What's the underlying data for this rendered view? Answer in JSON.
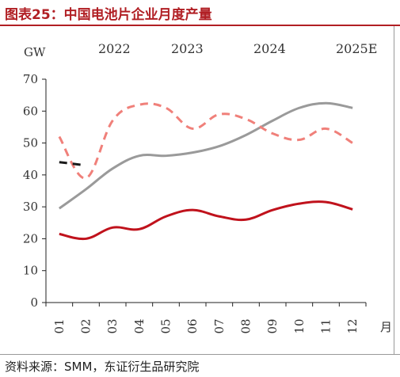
{
  "figure": {
    "title": "图表25：中国电池片企业月度产量",
    "source": "资料来源：SMM，东证衍生品研究院"
  },
  "chart_data": {
    "type": "line",
    "title": "",
    "ylabel": "GW",
    "xlabel": "月",
    "ylim": [
      0,
      70
    ],
    "yticks": [
      0,
      10,
      20,
      30,
      40,
      50,
      60,
      70
    ],
    "categories": [
      "01",
      "02",
      "03",
      "04",
      "05",
      "06",
      "07",
      "08",
      "09",
      "10",
      "11",
      "12"
    ],
    "grid": false,
    "legend_position": "top",
    "series": [
      {
        "name": "2022",
        "color": "#c0121c",
        "dash": "solid",
        "values": [
          21.5,
          20,
          23.5,
          23,
          27,
          29,
          27,
          26,
          29,
          31,
          31.5,
          29.2
        ]
      },
      {
        "name": "2023",
        "color": "#9a9a9a",
        "dash": "solid",
        "values": [
          29.5,
          35.5,
          42,
          46,
          46,
          47,
          49,
          52.5,
          57,
          61,
          62.5,
          61
        ]
      },
      {
        "name": "2024",
        "color": "#f0807a",
        "dash": "dashed",
        "values": [
          52,
          39,
          57,
          62,
          61,
          54.5,
          59,
          57.5,
          53,
          51,
          54.5,
          50
        ]
      },
      {
        "name": "2025E",
        "color": "#1a1a1a",
        "dash": "dashed",
        "values": [
          44,
          43,
          null,
          null,
          null,
          null,
          null,
          null,
          null,
          null,
          null,
          null
        ]
      }
    ]
  }
}
